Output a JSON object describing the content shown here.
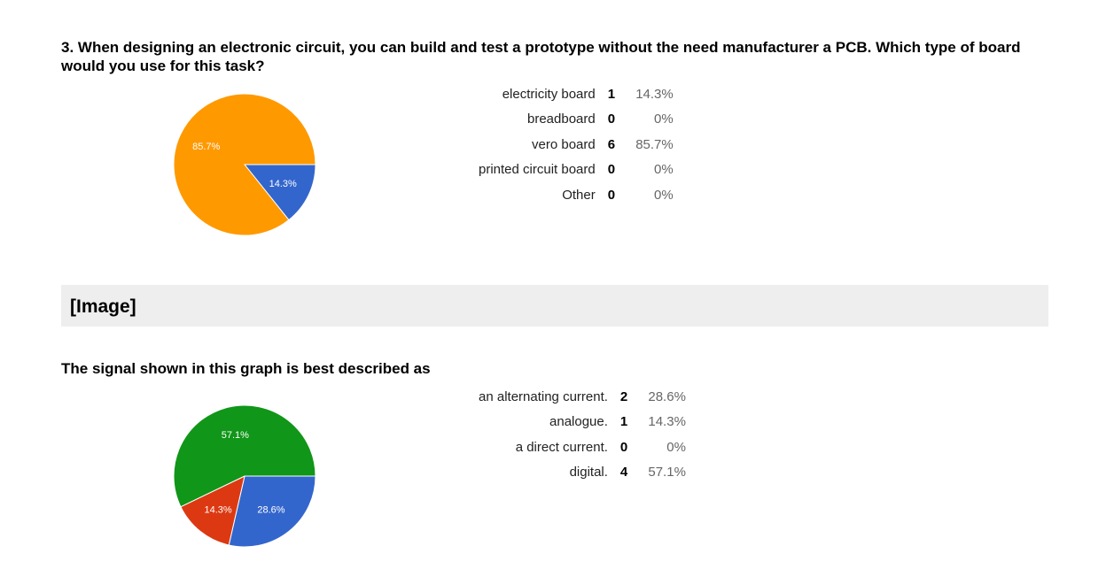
{
  "questions": [
    {
      "title": "3. When designing an electronic circuit, you can build and test a prototype without the need manufacturer a PCB. Which type of board would you use for this task?",
      "rows": [
        {
          "label": "electricity board",
          "count": "1",
          "pct": "14.3%"
        },
        {
          "label": "breadboard",
          "count": "0",
          "pct": "0%"
        },
        {
          "label": "vero board",
          "count": "6",
          "pct": "85.7%"
        },
        {
          "label": "printed circuit board",
          "count": "0",
          "pct": "0%"
        },
        {
          "label": "Other",
          "count": "0",
          "pct": "0%"
        }
      ]
    },
    {
      "title": "The signal shown in this graph is best described as",
      "rows": [
        {
          "label": "an alternating current.",
          "count": "2",
          "pct": "28.6%"
        },
        {
          "label": "analogue.",
          "count": "1",
          "pct": "14.3%"
        },
        {
          "label": "a direct current.",
          "count": "0",
          "pct": "0%"
        },
        {
          "label": "digital.",
          "count": "4",
          "pct": "57.1%"
        }
      ]
    }
  ],
  "section_header": "[Image]",
  "chart_data": [
    {
      "type": "pie",
      "slices": [
        {
          "label": "electricity board",
          "value": 1,
          "percent_label": "14.3%",
          "color": "#3366cc"
        },
        {
          "label": "breadboard",
          "value": 0,
          "percent_label": "0%",
          "color": "#dc3912"
        },
        {
          "label": "vero board",
          "value": 6,
          "percent_label": "85.7%",
          "color": "#ff9900"
        },
        {
          "label": "printed circuit board",
          "value": 0,
          "percent_label": "0%",
          "color": "#109618"
        },
        {
          "label": "Other",
          "value": 0,
          "percent_label": "0%",
          "color": "#990099"
        }
      ]
    },
    {
      "type": "pie",
      "slices": [
        {
          "label": "an alternating current.",
          "value": 2,
          "percent_label": "28.6%",
          "color": "#3366cc"
        },
        {
          "label": "analogue.",
          "value": 1,
          "percent_label": "14.3%",
          "color": "#dc3912"
        },
        {
          "label": "a direct current.",
          "value": 0,
          "percent_label": "0%",
          "color": "#ff9900"
        },
        {
          "label": "digital.",
          "value": 4,
          "percent_label": "57.1%",
          "color": "#109618"
        }
      ]
    }
  ]
}
